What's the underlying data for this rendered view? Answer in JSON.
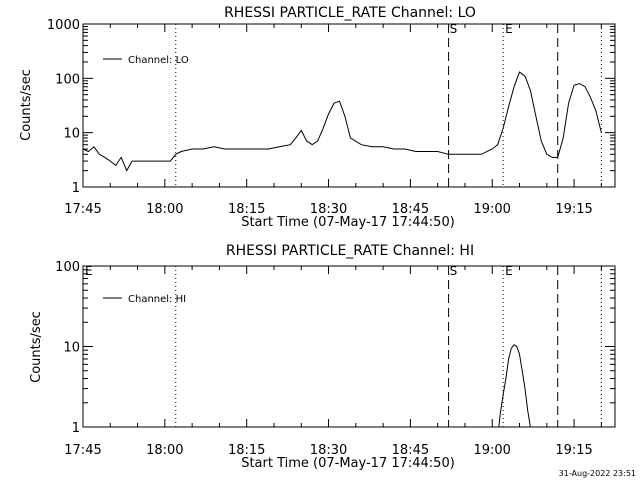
{
  "stamp": "31-Aug-2022 23:51",
  "chart_data": [
    {
      "type": "line",
      "title": "RHESSI PARTICLE_RATE Channel: LO",
      "xlabel": "Start Time (07-May-17 17:44:50)",
      "ylabel": "Counts/sec",
      "yscale": "log",
      "xlim": [
        "17:45",
        "19:22"
      ],
      "ylim": [
        1,
        1000
      ],
      "xticks": [
        "17:45",
        "18:00",
        "18:15",
        "18:30",
        "18:45",
        "19:00",
        "19:15"
      ],
      "yticks": [
        "1",
        "10",
        "100",
        "1000"
      ],
      "legend": "Channel: LO",
      "legend_position": "top-left",
      "dotted_lines": [
        "18:02",
        "19:02",
        "19:20"
      ],
      "dashed_lines": [
        {
          "x": "18:52",
          "label": "S"
        },
        {
          "x": "19:12",
          "label": ""
        }
      ],
      "markers": [
        {
          "x": "19:02",
          "label": "E"
        }
      ],
      "series": [
        {
          "x": [
            "17:45",
            "17:46",
            "17:47",
            "17:48",
            "17:49",
            "17:50",
            "17:51",
            "17:52",
            "17:53",
            "17:54",
            "17:55",
            "17:56",
            "17:57",
            "17:58",
            "17:59",
            "18:00",
            "18:01",
            "18:02",
            "18:03",
            "18:05",
            "18:07",
            "18:09",
            "18:11",
            "18:13",
            "18:15",
            "18:17",
            "18:19",
            "18:21",
            "18:23",
            "18:24",
            "18:25",
            "18:26",
            "18:27",
            "18:28",
            "18:29",
            "18:30",
            "18:31",
            "18:32",
            "18:33",
            "18:34",
            "18:36",
            "18:38",
            "18:40",
            "18:42",
            "18:44",
            "18:46",
            "18:48",
            "18:50",
            "18:52",
            "18:54",
            "18:56",
            "18:58",
            "19:00",
            "19:01",
            "19:02",
            "19:03",
            "19:04",
            "19:05",
            "19:06",
            "19:07",
            "19:08",
            "19:09",
            "19:10",
            "19:11",
            "19:12",
            "19:13",
            "19:14",
            "19:15",
            "19:16",
            "19:17",
            "19:18",
            "19:19",
            "19:20"
          ],
          "y": [
            5,
            4.5,
            5.5,
            4,
            3.5,
            3,
            2.5,
            3.5,
            2,
            3,
            3,
            3,
            3,
            3,
            3,
            3,
            3,
            4,
            4.5,
            5,
            5,
            5.5,
            5,
            5,
            5,
            5,
            5,
            5.5,
            6,
            8,
            11,
            7,
            6,
            7,
            12,
            22,
            35,
            38,
            20,
            8,
            6,
            5.5,
            5.5,
            5,
            5,
            4.5,
            4.5,
            4.5,
            4,
            4,
            4,
            4,
            5,
            6,
            12,
            30,
            70,
            130,
            110,
            60,
            20,
            7,
            4,
            3.5,
            3.5,
            8,
            35,
            75,
            80,
            70,
            45,
            25,
            10
          ]
        }
      ]
    },
    {
      "type": "line",
      "title": "RHESSI PARTICLE_RATE Channel: HI",
      "xlabel": "Start Time (07-May-17 17:44:50)",
      "ylabel": "Counts/sec",
      "yscale": "log",
      "xlim": [
        "17:45",
        "19:22"
      ],
      "ylim": [
        1,
        100
      ],
      "xticks": [
        "17:45",
        "18:00",
        "18:15",
        "18:30",
        "18:45",
        "19:00",
        "19:15"
      ],
      "yticks": [
        "1",
        "10",
        "100"
      ],
      "legend": "Channel: HI",
      "legend_position": "top-left",
      "dotted_lines": [
        "18:02",
        "19:02",
        "19:20"
      ],
      "dashed_lines": [
        {
          "x": "18:52",
          "label": "S"
        },
        {
          "x": "19:12",
          "label": ""
        }
      ],
      "markers": [
        {
          "x": "17:45",
          "label": "E"
        },
        {
          "x": "19:02",
          "label": "E"
        }
      ],
      "series": [
        {
          "x": [
            "19:01.2",
            "19:01.5",
            "19:02",
            "19:02.5",
            "19:03",
            "19:03.5",
            "19:04",
            "19:04.5",
            "19:05",
            "19:05.5",
            "19:06",
            "19:06.5",
            "19:07"
          ],
          "y": [
            1,
            1.5,
            2.5,
            4,
            7,
            9.5,
            10.5,
            10,
            8,
            5,
            3,
            1.6,
            1
          ]
        }
      ]
    }
  ]
}
